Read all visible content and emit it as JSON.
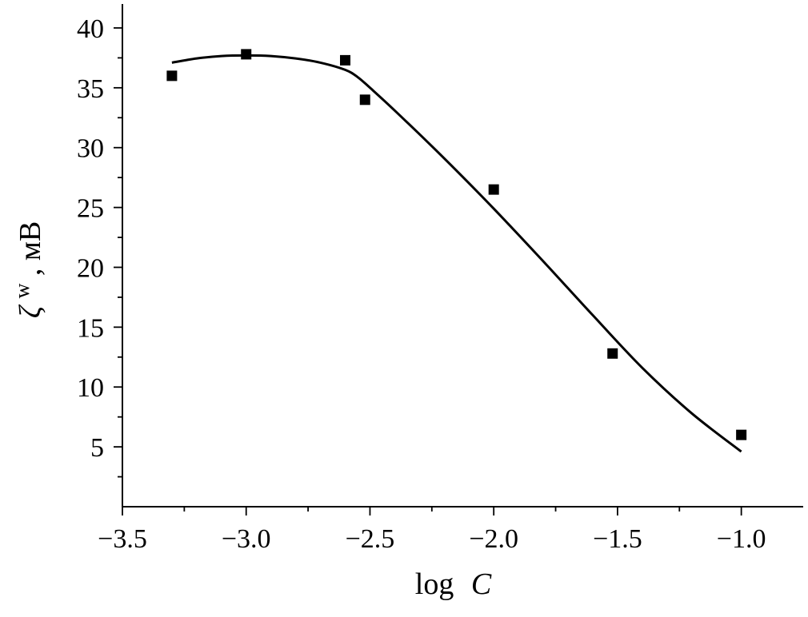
{
  "chart_data": {
    "type": "scatter",
    "xlabel": {
      "prefix": "log",
      "variable": "C"
    },
    "ylabel": {
      "symbol": "ζ",
      "superscript": "w",
      "suffix": ", мВ"
    },
    "xlim": [
      -3.5,
      -0.75
    ],
    "ylim": [
      0,
      42
    ],
    "x_ticks": [
      -3.5,
      -3.0,
      -2.5,
      -2.0,
      -1.5,
      -1.0
    ],
    "x_tick_labels": [
      "−3.5",
      "−3.0",
      "−2.5",
      "−2.0",
      "−1.5",
      "−1.0"
    ],
    "y_ticks": [
      5,
      10,
      15,
      20,
      25,
      30,
      35,
      40
    ],
    "y_tick_labels": [
      "5",
      "10",
      "15",
      "20",
      "25",
      "30",
      "35",
      "40"
    ],
    "grid": false,
    "legend": "none",
    "series": [
      {
        "kind": "markers",
        "marker": "square",
        "color": "#000000",
        "x": [
          -3.3,
          -3.0,
          -2.6,
          -2.52,
          -2.0,
          -1.52,
          -1.0
        ],
        "y": [
          36.0,
          37.8,
          37.3,
          34.0,
          26.5,
          12.8,
          6.0
        ]
      },
      {
        "kind": "line",
        "color": "#000000",
        "x": [
          -3.3,
          -3.2,
          -3.1,
          -3.0,
          -2.9,
          -2.8,
          -2.7,
          -2.6,
          -2.55,
          -2.5,
          -2.4,
          -2.2,
          -2.0,
          -1.8,
          -1.6,
          -1.4,
          -1.2,
          -1.0
        ],
        "y": [
          37.1,
          37.45,
          37.65,
          37.7,
          37.65,
          37.45,
          37.1,
          36.5,
          35.9,
          35.0,
          33.1,
          29.1,
          24.9,
          20.5,
          16.0,
          11.6,
          7.8,
          4.6
        ]
      }
    ]
  }
}
